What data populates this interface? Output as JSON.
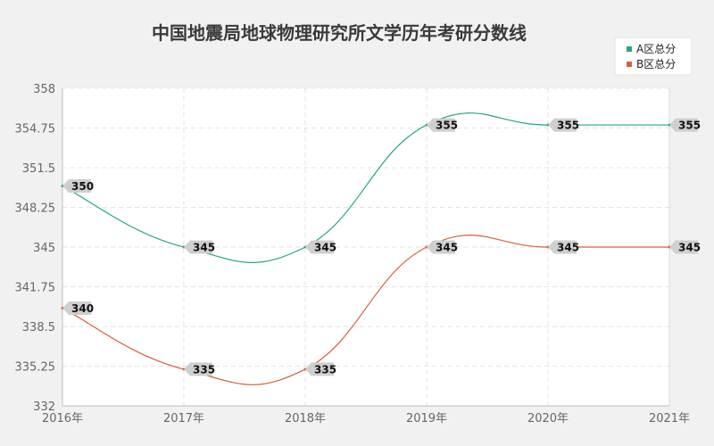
{
  "chart_data": {
    "type": "line",
    "title": "中国地震局地球物理研究所文学历年考研分数线",
    "xlabel": "",
    "ylabel": "",
    "categories": [
      "2016年",
      "2017年",
      "2018年",
      "2019年",
      "2020年",
      "2021年"
    ],
    "y_ticks": [
      "332",
      "335.25",
      "338.5",
      "341.75",
      "345",
      "348.25",
      "351.5",
      "354.75",
      "358"
    ],
    "ylim": [
      332,
      358
    ],
    "grid": true,
    "legend_position": "top-right",
    "series": [
      {
        "name": "A区总分",
        "color": "#27a77f",
        "values": [
          350,
          345,
          345,
          355,
          355,
          355
        ]
      },
      {
        "name": "B区总分",
        "color": "#d7603a",
        "values": [
          340,
          335,
          335,
          345,
          345,
          345
        ]
      }
    ]
  }
}
